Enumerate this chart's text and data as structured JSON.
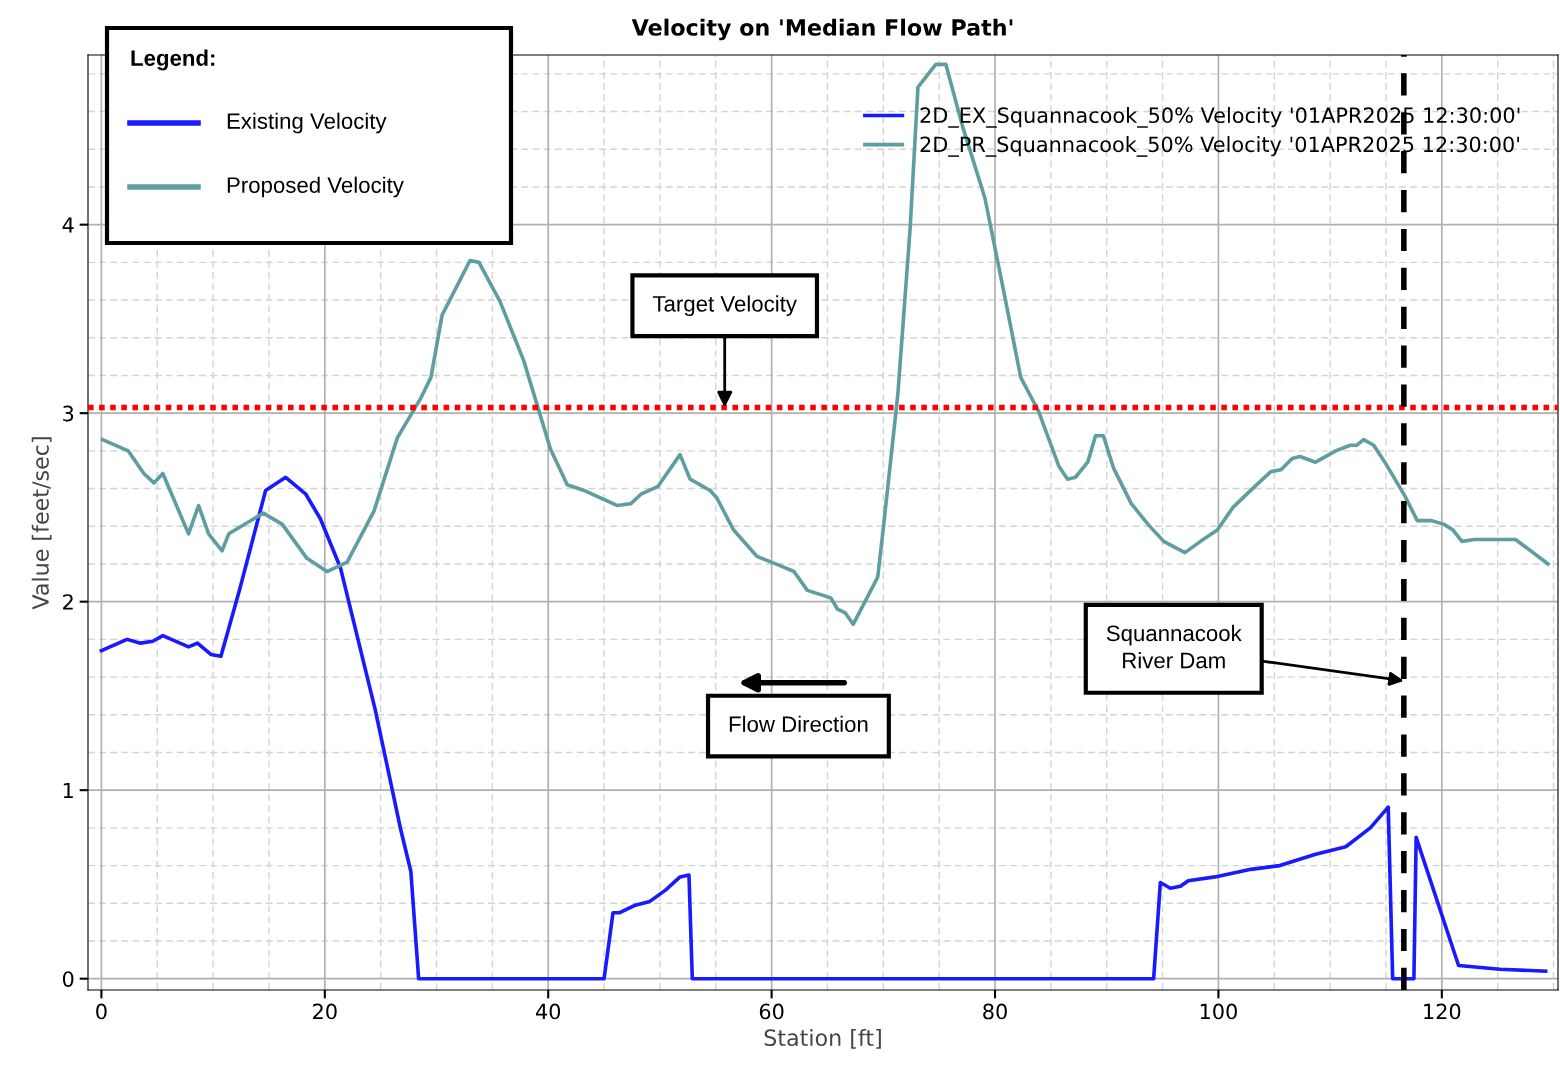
{
  "chart_data": {
    "type": "line",
    "title": "Velocity on 'Median Flow Path'",
    "xlabel": "Station [ft]",
    "ylabel": "Value [feet/sec]",
    "xlim": [
      -1.2,
      130.4
    ],
    "xticks": [
      0,
      20,
      40,
      60,
      80,
      100,
      120
    ],
    "ylim": [
      -0.06,
      4.9
    ],
    "yticks": [
      0,
      1,
      2,
      3,
      4
    ],
    "grid": true,
    "legend": "top right",
    "marker": "none",
    "line_style": "solid",
    "series": [
      {
        "name": "2D_EX_Squannacook_50% Velocity '01APR2025 12:30:00'",
        "color": "#1a1aff",
        "x": [
          0,
          2.3,
          3.5,
          4.6,
          5.5,
          7.8,
          8.6,
          9.8,
          10.7,
          12.4,
          14.7,
          16.5,
          18.3,
          19.6,
          21.4,
          24.5,
          26.8,
          27.7,
          28.4,
          45.0,
          45.8,
          46.4,
          47.8,
          49.1,
          50.5,
          51.8,
          52.6,
          52.9,
          94.2,
          94.8,
          95.7,
          96.6,
          97.3,
          99.7,
          102.9,
          105.5,
          108.7,
          111.4,
          113.6,
          115.2,
          115.6,
          117.5,
          117.7,
          121.5,
          125.2,
          129.3
        ],
        "values": [
          1.74,
          1.8,
          1.78,
          1.79,
          1.82,
          1.76,
          1.78,
          1.72,
          1.71,
          2.07,
          2.59,
          2.66,
          2.57,
          2.44,
          2.18,
          1.43,
          0.79,
          0.57,
          0,
          0,
          0.35,
          0.35,
          0.39,
          0.41,
          0.47,
          0.54,
          0.55,
          0,
          0,
          0.51,
          0.48,
          0.49,
          0.52,
          0.54,
          0.58,
          0.6,
          0.66,
          0.7,
          0.8,
          0.91,
          0,
          0,
          0.75,
          0.07,
          0.05,
          0.04
        ]
      },
      {
        "name": "2D_PR_Squannacook_50% Velocity '01APR2025 12:30:00'",
        "color": "#5f9ea0",
        "x": [
          0.1,
          2.4,
          3.8,
          4.7,
          5.5,
          7.8,
          8.7,
          9.6,
          10.8,
          11.4,
          14.5,
          16.2,
          18.4,
          20.2,
          22.0,
          24.4,
          26.5,
          28.6,
          29.5,
          30.5,
          33.0,
          33.8,
          35.7,
          37.8,
          40.2,
          41.7,
          43.2,
          46.2,
          47.4,
          48.3,
          49.8,
          51.8,
          52.7,
          54.5,
          55.1,
          56.6,
          58.7,
          60.8,
          62.0,
          63.2,
          65.3,
          65.9,
          66.6,
          67.3,
          69.5,
          70.0,
          71.3,
          72.4,
          73.1,
          74.7,
          75.6,
          77.1,
          79.1,
          80.9,
          82.3,
          83.9,
          85.7,
          86.5,
          87.2,
          88.3,
          89.0,
          89.7,
          90.6,
          92.2,
          93.7,
          95.1,
          97.0,
          98.4,
          99.9,
          101.3,
          103.6,
          104.7,
          105.6,
          106.6,
          107.3,
          108.7,
          110.5,
          111.8,
          112.4,
          113.0,
          113.9,
          114.9,
          116.7,
          117.8,
          119.1,
          120.2,
          121.0,
          121.8,
          122.9,
          124.2,
          126.6,
          129.5
        ],
        "values": [
          2.86,
          2.8,
          2.68,
          2.63,
          2.68,
          2.36,
          2.51,
          2.36,
          2.27,
          2.36,
          2.47,
          2.41,
          2.23,
          2.16,
          2.21,
          2.48,
          2.87,
          3.08,
          3.19,
          3.52,
          3.81,
          3.8,
          3.59,
          3.28,
          2.81,
          2.62,
          2.59,
          2.51,
          2.52,
          2.57,
          2.61,
          2.78,
          2.65,
          2.59,
          2.55,
          2.38,
          2.24,
          2.19,
          2.16,
          2.06,
          2.02,
          1.96,
          1.94,
          1.88,
          2.13,
          2.39,
          3.1,
          3.98,
          4.73,
          4.85,
          4.85,
          4.52,
          4.14,
          3.61,
          3.19,
          3.01,
          2.72,
          2.65,
          2.66,
          2.74,
          2.88,
          2.88,
          2.71,
          2.52,
          2.41,
          2.32,
          2.26,
          2.32,
          2.38,
          2.5,
          2.63,
          2.69,
          2.7,
          2.76,
          2.77,
          2.74,
          2.8,
          2.83,
          2.83,
          2.86,
          2.83,
          2.74,
          2.56,
          2.43,
          2.43,
          2.41,
          2.38,
          2.32,
          2.33,
          2.33,
          2.33,
          2.2
        ]
      }
    ],
    "ref_lines": [
      {
        "axis": "y",
        "value": 3.03,
        "label": "Target Velocity",
        "color": "#ff0000",
        "line_style": "dotted"
      },
      {
        "axis": "x",
        "value": 116.6,
        "label": "Squannacook\nRiver Dam",
        "color": "#000000",
        "line_style": "dashed"
      }
    ],
    "annotations": [
      "Legend:",
      "Existing Velocity",
      "Proposed Velocity",
      "Flow Direction"
    ]
  }
}
